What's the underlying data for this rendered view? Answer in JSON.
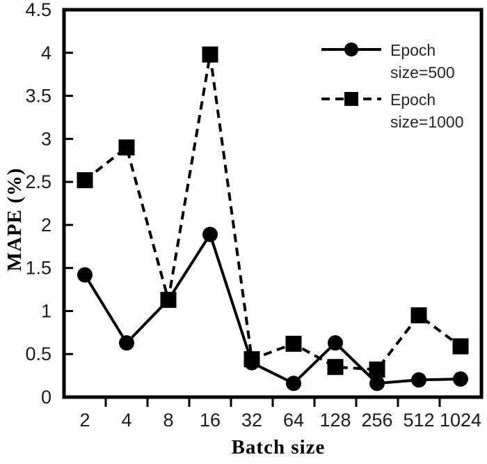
{
  "chart_data": {
    "type": "line",
    "title": "",
    "xlabel": "Batch size",
    "ylabel": "MAPE (%)",
    "categories": [
      "2",
      "4",
      "8",
      "16",
      "32",
      "64",
      "128",
      "256",
      "512",
      "1024"
    ],
    "ytick_labels": [
      "0",
      "0.5",
      "1",
      "1.5",
      "2",
      "2.5",
      "3",
      "3.5",
      "4",
      "4.5"
    ],
    "ylim": [
      0,
      4.5
    ],
    "grid": "off",
    "legend_position": "top-right-inside",
    "axis_color": "#000000",
    "series": [
      {
        "name": "Epoch size=500",
        "legend_lines": [
          "Epoch",
          "size=500"
        ],
        "marker": "circle",
        "line_style": "solid",
        "color": "#000000",
        "values": [
          1.42,
          0.63,
          1.13,
          1.89,
          0.4,
          0.16,
          0.63,
          0.16,
          0.2,
          0.21
        ]
      },
      {
        "name": "Epoch size=1000",
        "legend_lines": [
          "Epoch",
          "size=1000"
        ],
        "marker": "square",
        "line_style": "dashed",
        "color": "#000000",
        "values": [
          2.52,
          2.9,
          1.13,
          3.98,
          0.44,
          0.62,
          0.35,
          0.32,
          0.95,
          0.59
        ]
      }
    ]
  }
}
